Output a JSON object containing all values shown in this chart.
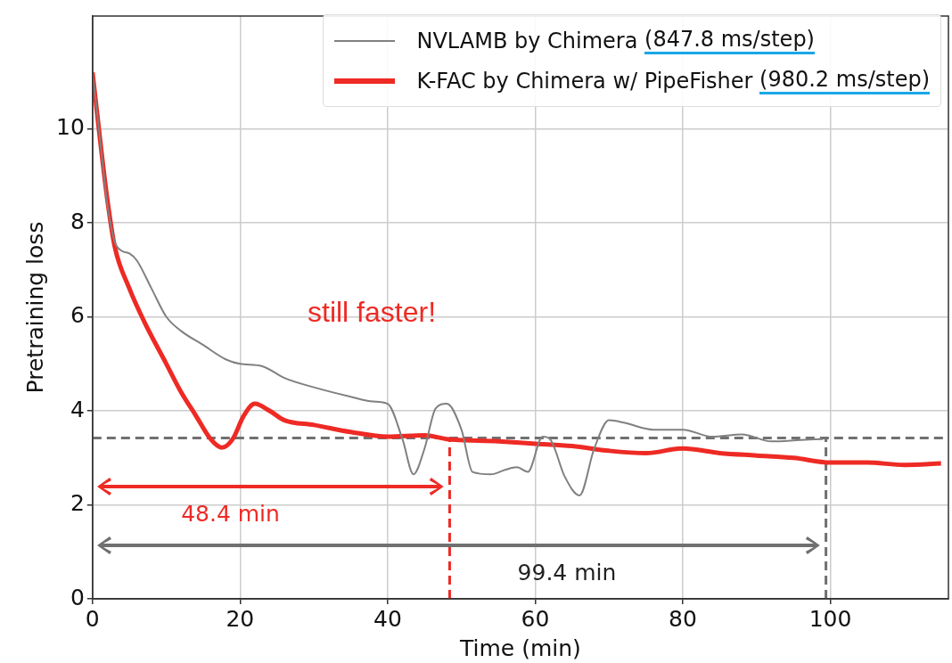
{
  "chart_data": {
    "type": "line",
    "xlabel": "Time (min)",
    "ylabel": "Pretraining loss",
    "xlim": [
      0,
      116
    ],
    "xticks": [
      0,
      20,
      40,
      60,
      80,
      100
    ],
    "ylim": [
      0,
      12.4
    ],
    "yticks": [
      0,
      2,
      4,
      6,
      8,
      10
    ],
    "grid": true,
    "legend": "top right",
    "marker": "none",
    "line_style": "solid",
    "series": [
      {
        "name": "NVLAMB by Chimera (847.8 ms/step)",
        "color": "#808080",
        "x": [
          0,
          1,
          2,
          3,
          4,
          5,
          6,
          8,
          10,
          12,
          15,
          18,
          20,
          23,
          26,
          30,
          35,
          38,
          40,
          42,
          43.5,
          45,
          46.5,
          48,
          50,
          51.5,
          54,
          56,
          57.5,
          59,
          61,
          62,
          64,
          66,
          68,
          70,
          72,
          76,
          80,
          84,
          88,
          92,
          96,
          99
        ],
        "values": [
          11.2,
          9.8,
          8.4,
          7.6,
          7.4,
          7.35,
          7.2,
          6.6,
          6.0,
          5.7,
          5.4,
          5.1,
          5.0,
          4.95,
          4.7,
          4.5,
          4.3,
          4.2,
          4.15,
          3.4,
          2.65,
          3.2,
          4.05,
          4.15,
          3.6,
          2.7,
          2.65,
          2.75,
          2.8,
          2.7,
          3.45,
          3.4,
          2.6,
          2.2,
          3.2,
          3.8,
          3.75,
          3.6,
          3.6,
          3.45,
          3.5,
          3.35,
          3.38,
          3.4
        ]
      },
      {
        "name": "K-FAC by Chimera w/ PipeFisher (980.2 ms/step)",
        "color": "#ee2a24",
        "x": [
          0,
          1,
          2,
          3,
          5,
          7,
          10,
          12,
          14,
          16,
          17.5,
          19,
          20.5,
          22,
          24,
          26,
          30,
          35,
          40,
          45,
          48,
          55,
          60,
          65,
          70,
          75,
          80,
          85,
          90,
          95,
          100,
          105,
          110,
          115
        ],
        "values": [
          11.2,
          9.8,
          8.5,
          7.5,
          6.6,
          5.9,
          5.0,
          4.4,
          3.9,
          3.4,
          3.22,
          3.4,
          3.9,
          4.15,
          4.0,
          3.8,
          3.7,
          3.55,
          3.45,
          3.48,
          3.4,
          3.35,
          3.3,
          3.25,
          3.15,
          3.1,
          3.2,
          3.1,
          3.05,
          3.0,
          2.9,
          2.9,
          2.85,
          2.88
        ]
      }
    ],
    "ref_lines": [
      {
        "axis": "y",
        "value": 3.42,
        "color": "#707070",
        "line_style": "dashed"
      },
      {
        "axis": "x",
        "value": 48.4,
        "color": "#ee2a24",
        "line_style": "dashed"
      },
      {
        "axis": "x",
        "value": 99.4,
        "color": "#707070",
        "line_style": "dashed"
      }
    ],
    "annotations": [
      "still faster!",
      "48.4 min",
      "99.4 min"
    ]
  }
}
